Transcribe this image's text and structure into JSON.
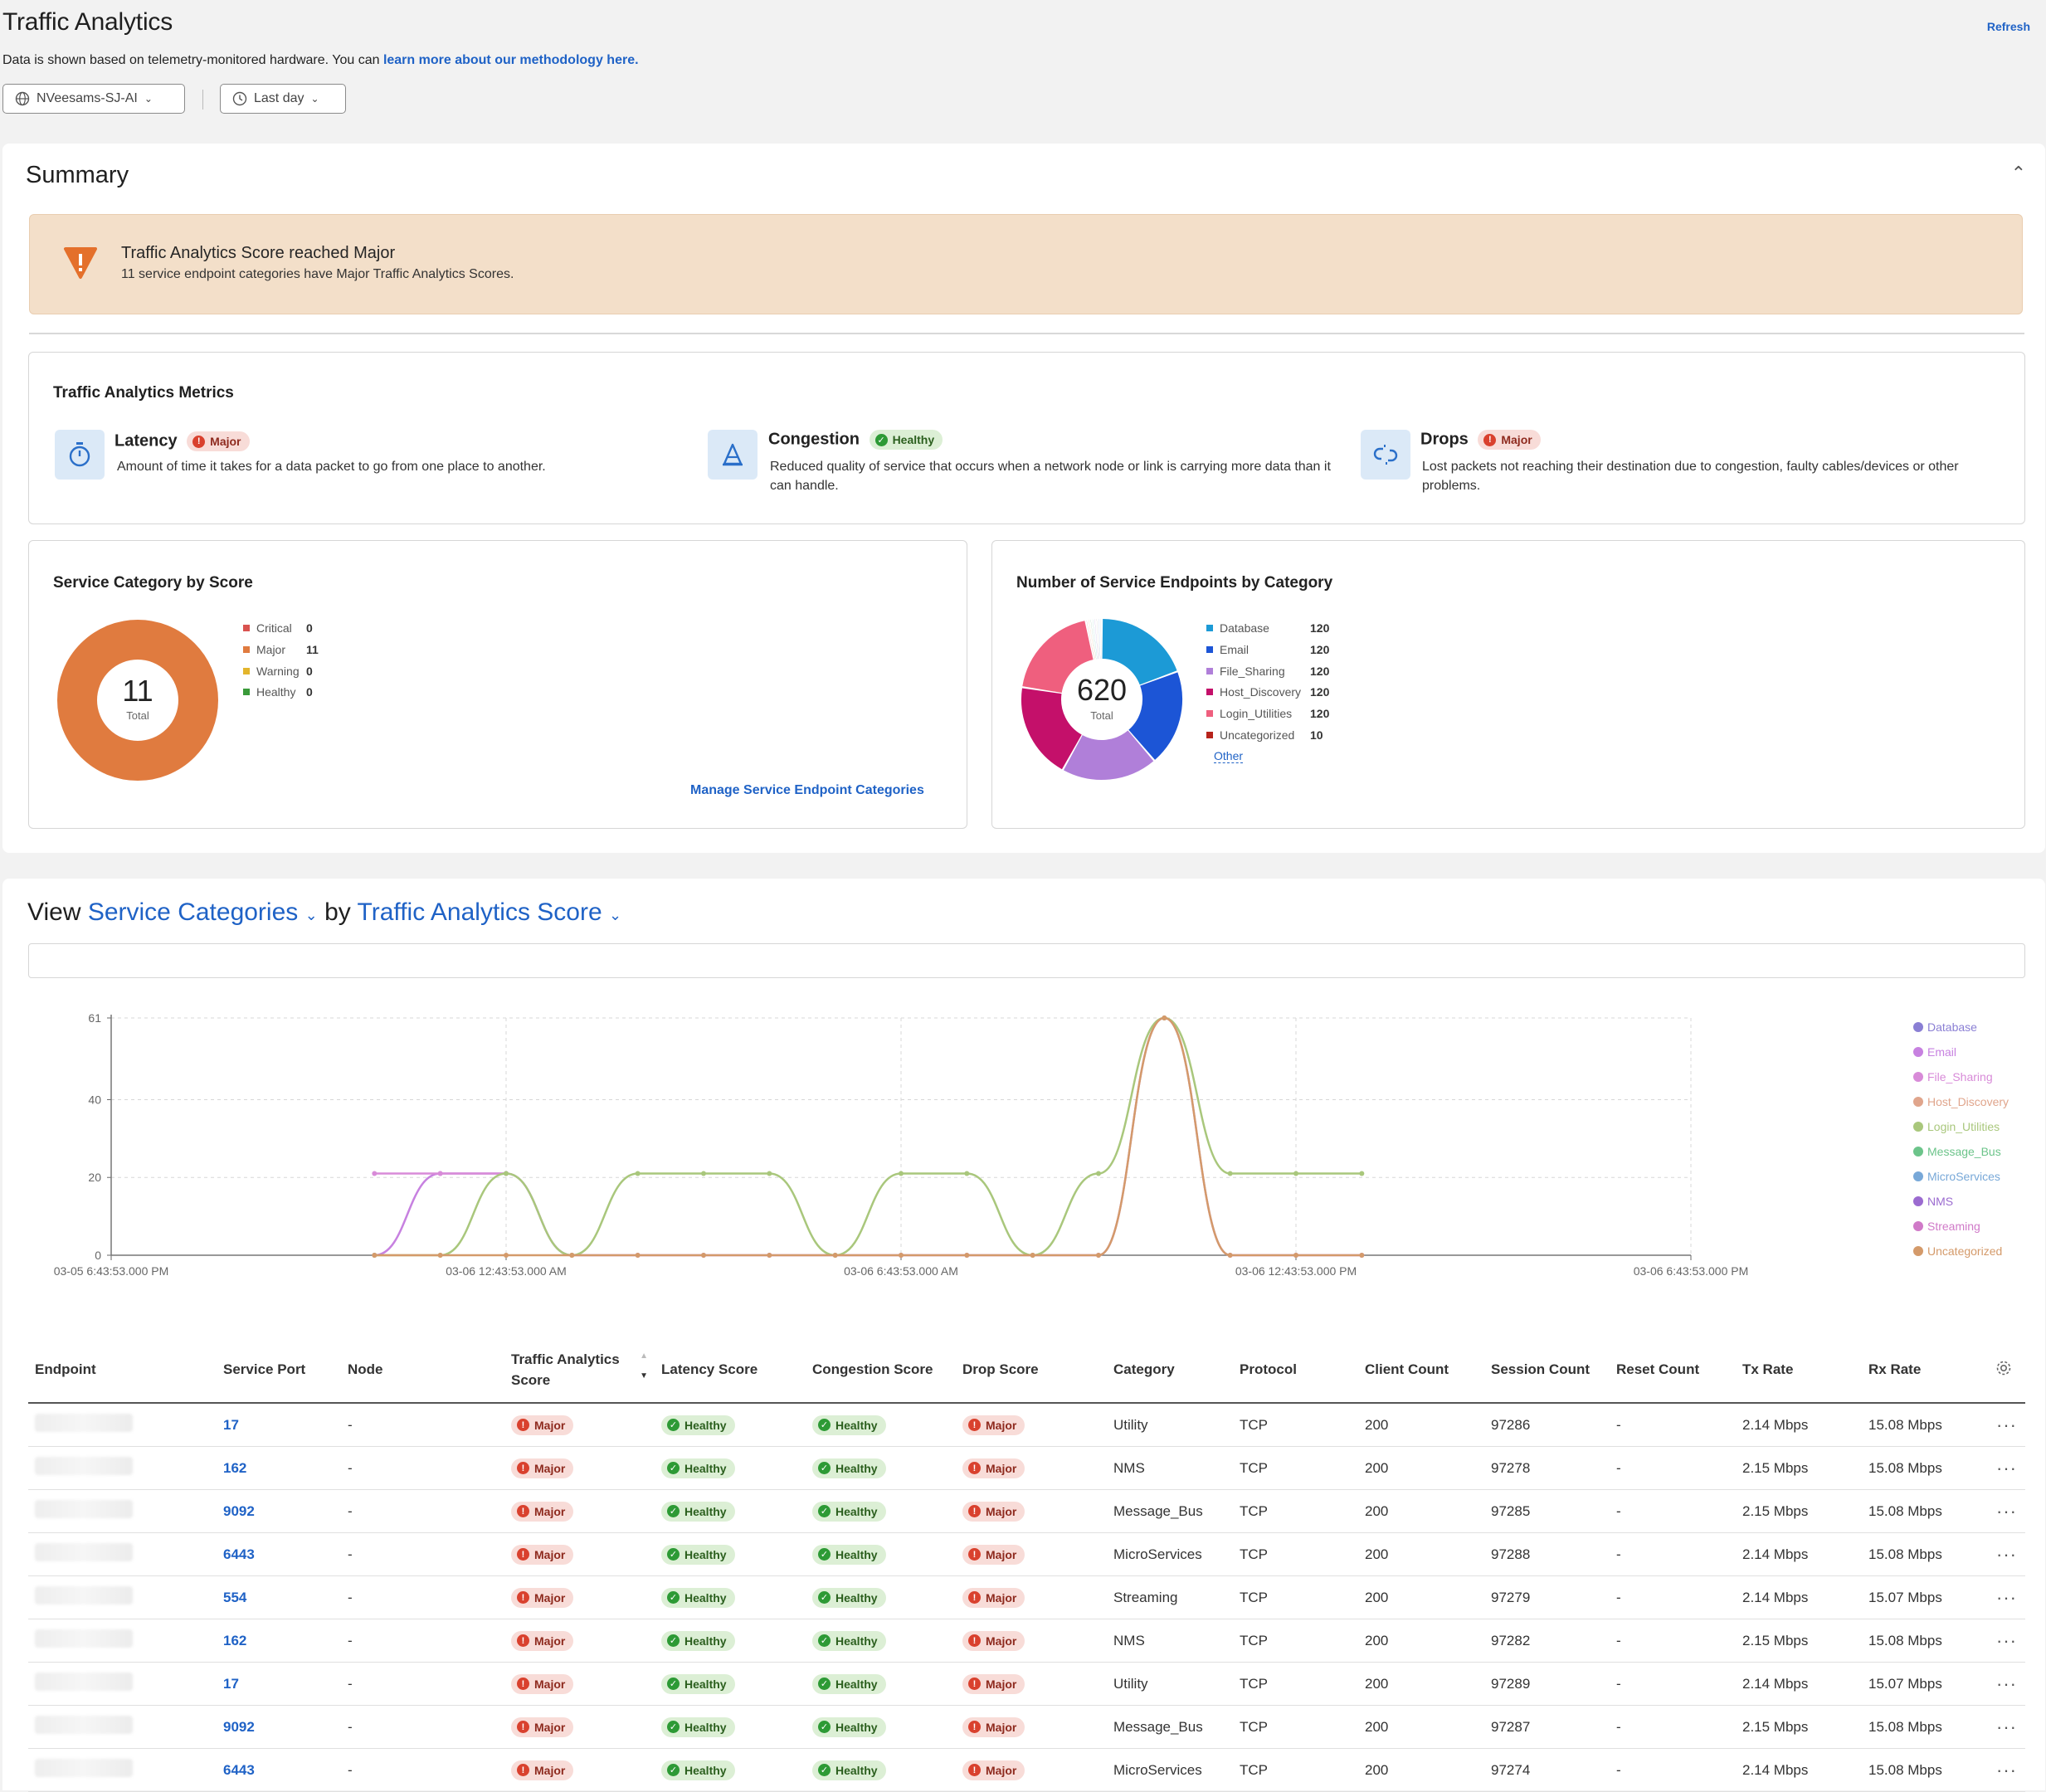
{
  "header": {
    "title": "Traffic Analytics",
    "refresh": "Refresh",
    "desc_prefix": "Data is shown based on telemetry-monitored hardware. You can ",
    "desc_link": "learn more about our methodology here.",
    "site_filter": "NVeesams-SJ-AI",
    "time_filter": "Last day"
  },
  "summary": {
    "title": "Summary",
    "alert": {
      "title": "Traffic Analytics Score reached Major",
      "subtitle": "11 service endpoint categories have Major Traffic Analytics Scores."
    },
    "metrics": {
      "title": "Traffic Analytics Metrics",
      "items": [
        {
          "name": "Latency",
          "status": "Major",
          "desc": "Amount of time it takes for a data packet to go from one place to another."
        },
        {
          "name": "Congestion",
          "status": "Healthy",
          "desc": "Reduced quality of service that occurs when a network node or link is carrying more data than it can handle."
        },
        {
          "name": "Drops",
          "status": "Major",
          "desc": "Lost packets not reaching their destination due to congestion, faulty cables/devices or other problems."
        }
      ]
    },
    "score_panel": {
      "title": "Service Category by Score",
      "total": "11",
      "total_label": "Total",
      "legend": [
        {
          "label": "Critical",
          "value": "0",
          "color": "#d9534f"
        },
        {
          "label": "Major",
          "value": "11",
          "color": "#e07b3f"
        },
        {
          "label": "Warning",
          "value": "0",
          "color": "#e3b52c"
        },
        {
          "label": "Healthy",
          "value": "0",
          "color": "#3a9a3a"
        }
      ],
      "manage_link": "Manage Service Endpoint Categories"
    },
    "endpoints_panel": {
      "title": "Number of Service Endpoints by Category",
      "total": "620",
      "total_label": "Total",
      "legend": [
        {
          "label": "Database",
          "value": "120",
          "color": "#1c9ad6"
        },
        {
          "label": "Email",
          "value": "120",
          "color": "#1c55d6"
        },
        {
          "label": "File_Sharing",
          "value": "120",
          "color": "#b07fd9"
        },
        {
          "label": "Host_Discovery",
          "value": "120",
          "color": "#c4106a"
        },
        {
          "label": "Login_Utilities",
          "value": "120",
          "color": "#ef5f7e"
        },
        {
          "label": "Uncategorized",
          "value": "10",
          "color": "#b7241c"
        }
      ],
      "other_link": "Other"
    }
  },
  "view": {
    "prefix": "View",
    "dim1": "Service Categories",
    "mid": "by",
    "dim2": "Traffic Analytics Score"
  },
  "chart_data": {
    "type": "line",
    "x_ticks": [
      "03-05 6:43:53.000 PM",
      "03-06 12:43:53.000 AM",
      "03-06 6:43:53.000 AM",
      "03-06 12:43:53.000 PM",
      "03-06 6:43:53.000 PM"
    ],
    "y_ticks": [
      0,
      20,
      40,
      61
    ],
    "ylim": [
      0,
      61
    ],
    "x_hours": [
      4,
      5,
      6,
      7,
      8,
      9,
      10,
      11,
      12,
      13,
      14,
      15,
      16,
      17,
      18,
      19
    ],
    "series": [
      {
        "name": "Database",
        "color": "#8a7fd4",
        "values": [
          null,
          null,
          null,
          null,
          null,
          null,
          null,
          null,
          null,
          null,
          null,
          null,
          null,
          null,
          null,
          null
        ]
      },
      {
        "name": "Email",
        "color": "#c781e0",
        "values": [
          0,
          21,
          21,
          0,
          0,
          0,
          0,
          0,
          0,
          0,
          0,
          0,
          61,
          0,
          0,
          0
        ]
      },
      {
        "name": "File_Sharing",
        "color": "#d88bd8",
        "values": [
          21,
          21,
          21,
          null,
          null,
          null,
          null,
          null,
          null,
          null,
          null,
          null,
          null,
          null,
          null,
          null
        ]
      },
      {
        "name": "Host_Discovery",
        "color": "#e0a58c",
        "values": [
          null,
          null,
          null,
          null,
          null,
          null,
          null,
          null,
          null,
          null,
          null,
          null,
          null,
          null,
          null,
          null
        ]
      },
      {
        "name": "Login_Utilities",
        "color": "#a9c77c",
        "values": [
          0,
          0,
          21,
          0,
          21,
          21,
          21,
          0,
          21,
          21,
          0,
          21,
          61,
          21,
          21,
          21
        ]
      },
      {
        "name": "Message_Bus",
        "color": "#6cc48a",
        "values": [
          null,
          null,
          null,
          null,
          null,
          null,
          null,
          null,
          null,
          null,
          null,
          null,
          null,
          null,
          null,
          null
        ]
      },
      {
        "name": "MicroServices",
        "color": "#78a8d8",
        "values": [
          null,
          null,
          null,
          null,
          null,
          null,
          null,
          null,
          null,
          null,
          null,
          null,
          null,
          null,
          null,
          null
        ]
      },
      {
        "name": "NMS",
        "color": "#9b6bd0",
        "values": [
          null,
          null,
          null,
          null,
          null,
          null,
          null,
          null,
          null,
          null,
          null,
          null,
          null,
          null,
          null,
          null
        ]
      },
      {
        "name": "Streaming",
        "color": "#d07ac8",
        "values": [
          null,
          null,
          null,
          null,
          null,
          null,
          null,
          null,
          null,
          null,
          null,
          null,
          null,
          null,
          null,
          null
        ]
      },
      {
        "name": "Uncategorized",
        "color": "#d49a6a",
        "values": [
          0,
          0,
          0,
          0,
          0,
          0,
          0,
          0,
          0,
          0,
          0,
          0,
          61,
          0,
          0,
          0
        ]
      }
    ]
  },
  "table": {
    "columns": [
      "Endpoint",
      "Service Port",
      "Node",
      "Traffic Analytics Score",
      "Latency Score",
      "Congestion Score",
      "Drop Score",
      "Category",
      "Protocol",
      "Client Count",
      "Session Count",
      "Reset Count",
      "Tx Rate",
      "Rx Rate"
    ],
    "rows": [
      {
        "port": "17",
        "node": "-",
        "ta": "Major",
        "lat": "Healthy",
        "cong": "Healthy",
        "drop": "Major",
        "cat": "Utility",
        "proto": "TCP",
        "clients": "200",
        "sessions": "97286",
        "resets": "-",
        "tx": "2.14 Mbps",
        "rx": "15.08 Mbps"
      },
      {
        "port": "162",
        "node": "-",
        "ta": "Major",
        "lat": "Healthy",
        "cong": "Healthy",
        "drop": "Major",
        "cat": "NMS",
        "proto": "TCP",
        "clients": "200",
        "sessions": "97278",
        "resets": "-",
        "tx": "2.15 Mbps",
        "rx": "15.08 Mbps"
      },
      {
        "port": "9092",
        "node": "-",
        "ta": "Major",
        "lat": "Healthy",
        "cong": "Healthy",
        "drop": "Major",
        "cat": "Message_Bus",
        "proto": "TCP",
        "clients": "200",
        "sessions": "97285",
        "resets": "-",
        "tx": "2.15 Mbps",
        "rx": "15.08 Mbps"
      },
      {
        "port": "6443",
        "node": "-",
        "ta": "Major",
        "lat": "Healthy",
        "cong": "Healthy",
        "drop": "Major",
        "cat": "MicroServices",
        "proto": "TCP",
        "clients": "200",
        "sessions": "97288",
        "resets": "-",
        "tx": "2.14 Mbps",
        "rx": "15.08 Mbps"
      },
      {
        "port": "554",
        "node": "-",
        "ta": "Major",
        "lat": "Healthy",
        "cong": "Healthy",
        "drop": "Major",
        "cat": "Streaming",
        "proto": "TCP",
        "clients": "200",
        "sessions": "97279",
        "resets": "-",
        "tx": "2.14 Mbps",
        "rx": "15.07 Mbps"
      },
      {
        "port": "162",
        "node": "-",
        "ta": "Major",
        "lat": "Healthy",
        "cong": "Healthy",
        "drop": "Major",
        "cat": "NMS",
        "proto": "TCP",
        "clients": "200",
        "sessions": "97282",
        "resets": "-",
        "tx": "2.15 Mbps",
        "rx": "15.08 Mbps"
      },
      {
        "port": "17",
        "node": "-",
        "ta": "Major",
        "lat": "Healthy",
        "cong": "Healthy",
        "drop": "Major",
        "cat": "Utility",
        "proto": "TCP",
        "clients": "200",
        "sessions": "97289",
        "resets": "-",
        "tx": "2.14 Mbps",
        "rx": "15.07 Mbps"
      },
      {
        "port": "9092",
        "node": "-",
        "ta": "Major",
        "lat": "Healthy",
        "cong": "Healthy",
        "drop": "Major",
        "cat": "Message_Bus",
        "proto": "TCP",
        "clients": "200",
        "sessions": "97287",
        "resets": "-",
        "tx": "2.15 Mbps",
        "rx": "15.08 Mbps"
      },
      {
        "port": "6443",
        "node": "-",
        "ta": "Major",
        "lat": "Healthy",
        "cong": "Healthy",
        "drop": "Major",
        "cat": "MicroServices",
        "proto": "TCP",
        "clients": "200",
        "sessions": "97274",
        "resets": "-",
        "tx": "2.14 Mbps",
        "rx": "15.08 Mbps"
      }
    ]
  }
}
